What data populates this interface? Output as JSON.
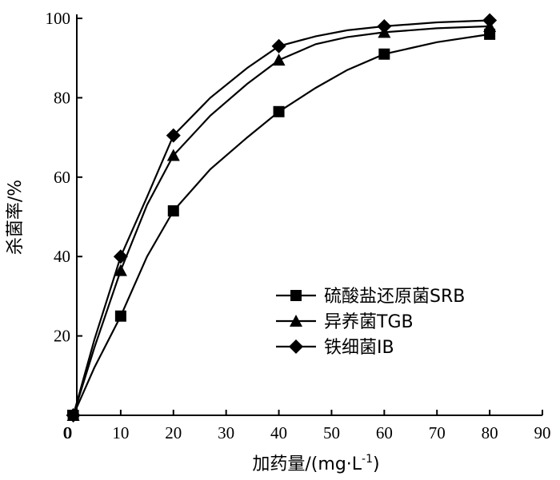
{
  "chart_data": {
    "type": "line",
    "xlabel": "加药量/(mg·L",
    "xlabel_sup": "-1",
    "xlabel_close": ")",
    "ylabel": "杀菌率/%",
    "xlim": [
      0,
      90
    ],
    "ylim": [
      0,
      100
    ],
    "x_ticks": [
      0,
      10,
      20,
      30,
      40,
      50,
      60,
      70,
      80,
      90
    ],
    "y_ticks": [
      20,
      40,
      60,
      80,
      100
    ],
    "grid": false,
    "legend_position": "center-right",
    "series": [
      {
        "name": "硫酸盐还原菌SRB",
        "marker": "square",
        "x": [
          1,
          10,
          20,
          40,
          60,
          80
        ],
        "y": [
          0,
          25,
          51.5,
          76.5,
          91,
          96
        ],
        "curve_x": [
          1,
          5,
          10,
          15,
          20,
          27,
          34,
          40,
          47,
          53,
          60,
          70,
          80
        ],
        "curve_y": [
          0,
          12,
          25,
          40,
          51.5,
          62,
          70,
          76.5,
          82.5,
          87,
          91,
          94,
          96
        ]
      },
      {
        "name": "异养菌TGB",
        "marker": "triangle",
        "x": [
          1,
          10,
          20,
          40,
          60,
          80
        ],
        "y": [
          0,
          36.5,
          65.5,
          89.5,
          96.5,
          98
        ],
        "curve_x": [
          1,
          5,
          10,
          15,
          20,
          27,
          34,
          40,
          47,
          53,
          60,
          70,
          80
        ],
        "curve_y": [
          0,
          17,
          36.5,
          53,
          65.5,
          75.5,
          83.5,
          89.5,
          93.5,
          95.3,
          96.5,
          97.5,
          98
        ]
      },
      {
        "name": "铁细菌IB",
        "marker": "diamond",
        "x": [
          1,
          10,
          20,
          40,
          60,
          80
        ],
        "y": [
          0,
          40,
          70.5,
          93,
          98,
          99.5
        ],
        "curve_x": [
          1,
          5,
          10,
          15,
          20,
          27,
          34,
          40,
          47,
          53,
          60,
          70,
          80
        ],
        "curve_y": [
          0,
          19,
          40,
          55,
          70.5,
          80,
          87.5,
          93,
          95.5,
          97,
          98,
          99,
          99.5
        ]
      }
    ]
  }
}
